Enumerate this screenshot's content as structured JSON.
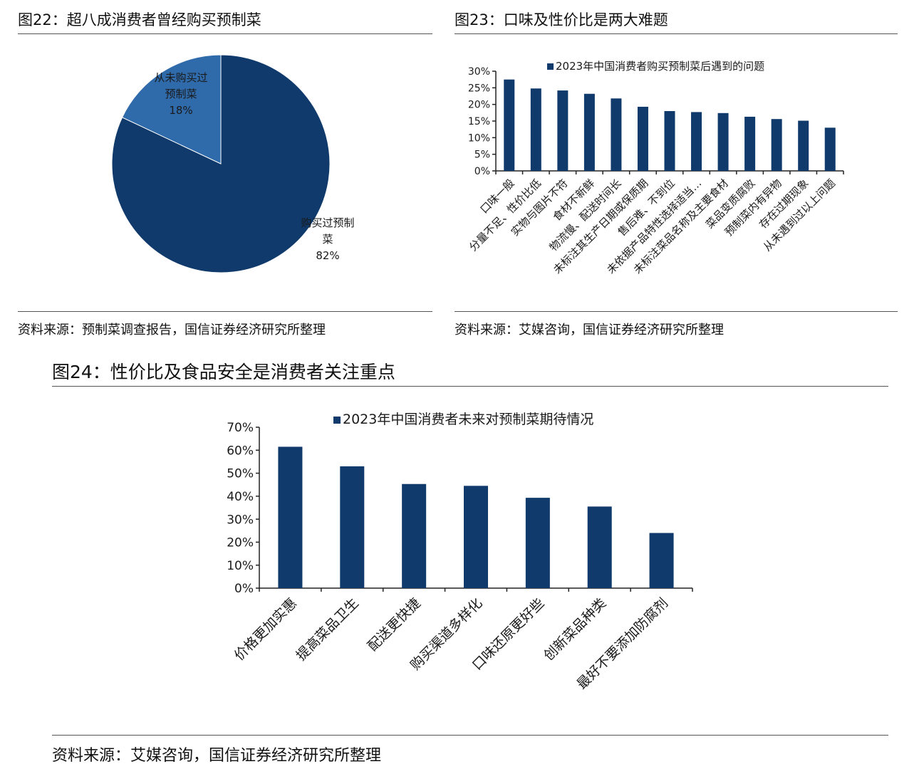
{
  "figures": [
    {
      "title": "图22：超八成消费者曾经购买预制菜",
      "source": "资料来源：预制菜调查报告，国信证券经济研究所整理"
    },
    {
      "title": "图23：口味及性价比是两大难题",
      "source": "资料来源：艾媒咨询，国信证券经济研究所整理"
    },
    {
      "title": "图24：性价比及食品安全是消费者关注重点",
      "source": "资料来源：艾媒咨询，国信证券经济研究所整理"
    }
  ],
  "colors": {
    "dark_navy": "#0f3a6b",
    "mid_blue": "#2f6aaa"
  },
  "chart_data": [
    {
      "type": "pie",
      "slices": [
        {
          "label_lines": [
            "购买过预制",
            "菜"
          ],
          "value": 82,
          "value_label": "82%",
          "color": "#0f3a6b"
        },
        {
          "label_lines": [
            "从未购买过",
            "预制菜"
          ],
          "value": 18,
          "value_label": "18%",
          "color": "#2f6aaa"
        }
      ]
    },
    {
      "type": "bar",
      "legend": "2023年中国消费者购买预制菜后遇到的问题",
      "ylim": [
        0,
        30
      ],
      "yticks": [
        0,
        5,
        10,
        15,
        20,
        25,
        30
      ],
      "ytick_labels": [
        "0%",
        "5%",
        "10%",
        "15%",
        "20%",
        "25%",
        "30%"
      ],
      "categories": [
        "口味一般",
        "分量不足、性价比低",
        "实物与图片不符",
        "食材不新鲜",
        "物流慢、配送时间长",
        "未标注其生产日期或保质期",
        "售后难、不到位",
        "未依据产品特性选择适当…",
        "未标注菜品名称及主要食材",
        "菜品变质腐败",
        "预制菜内有异物",
        "存在过期现象",
        "从未遇到过以上问题"
      ],
      "values": [
        27.5,
        24.8,
        24.2,
        23.2,
        21.8,
        19.3,
        18.0,
        17.7,
        17.4,
        16.3,
        15.6,
        15.1,
        13.0
      ]
    },
    {
      "type": "bar",
      "legend": "2023年中国消费者未来对预制菜期待情况",
      "ylim": [
        0,
        70
      ],
      "yticks": [
        0,
        10,
        20,
        30,
        40,
        50,
        60,
        70
      ],
      "ytick_labels": [
        "0%",
        "10%",
        "20%",
        "30%",
        "40%",
        "50%",
        "60%",
        "70%"
      ],
      "categories": [
        "价格更加实惠",
        "提高菜品卫生",
        "配送更快捷",
        "购买渠道多样化",
        "口味还原更好些",
        "创新菜品种类",
        "最好不要添加防腐剂"
      ],
      "values": [
        61.5,
        53.0,
        45.3,
        44.5,
        39.3,
        35.5,
        24.0
      ]
    }
  ]
}
